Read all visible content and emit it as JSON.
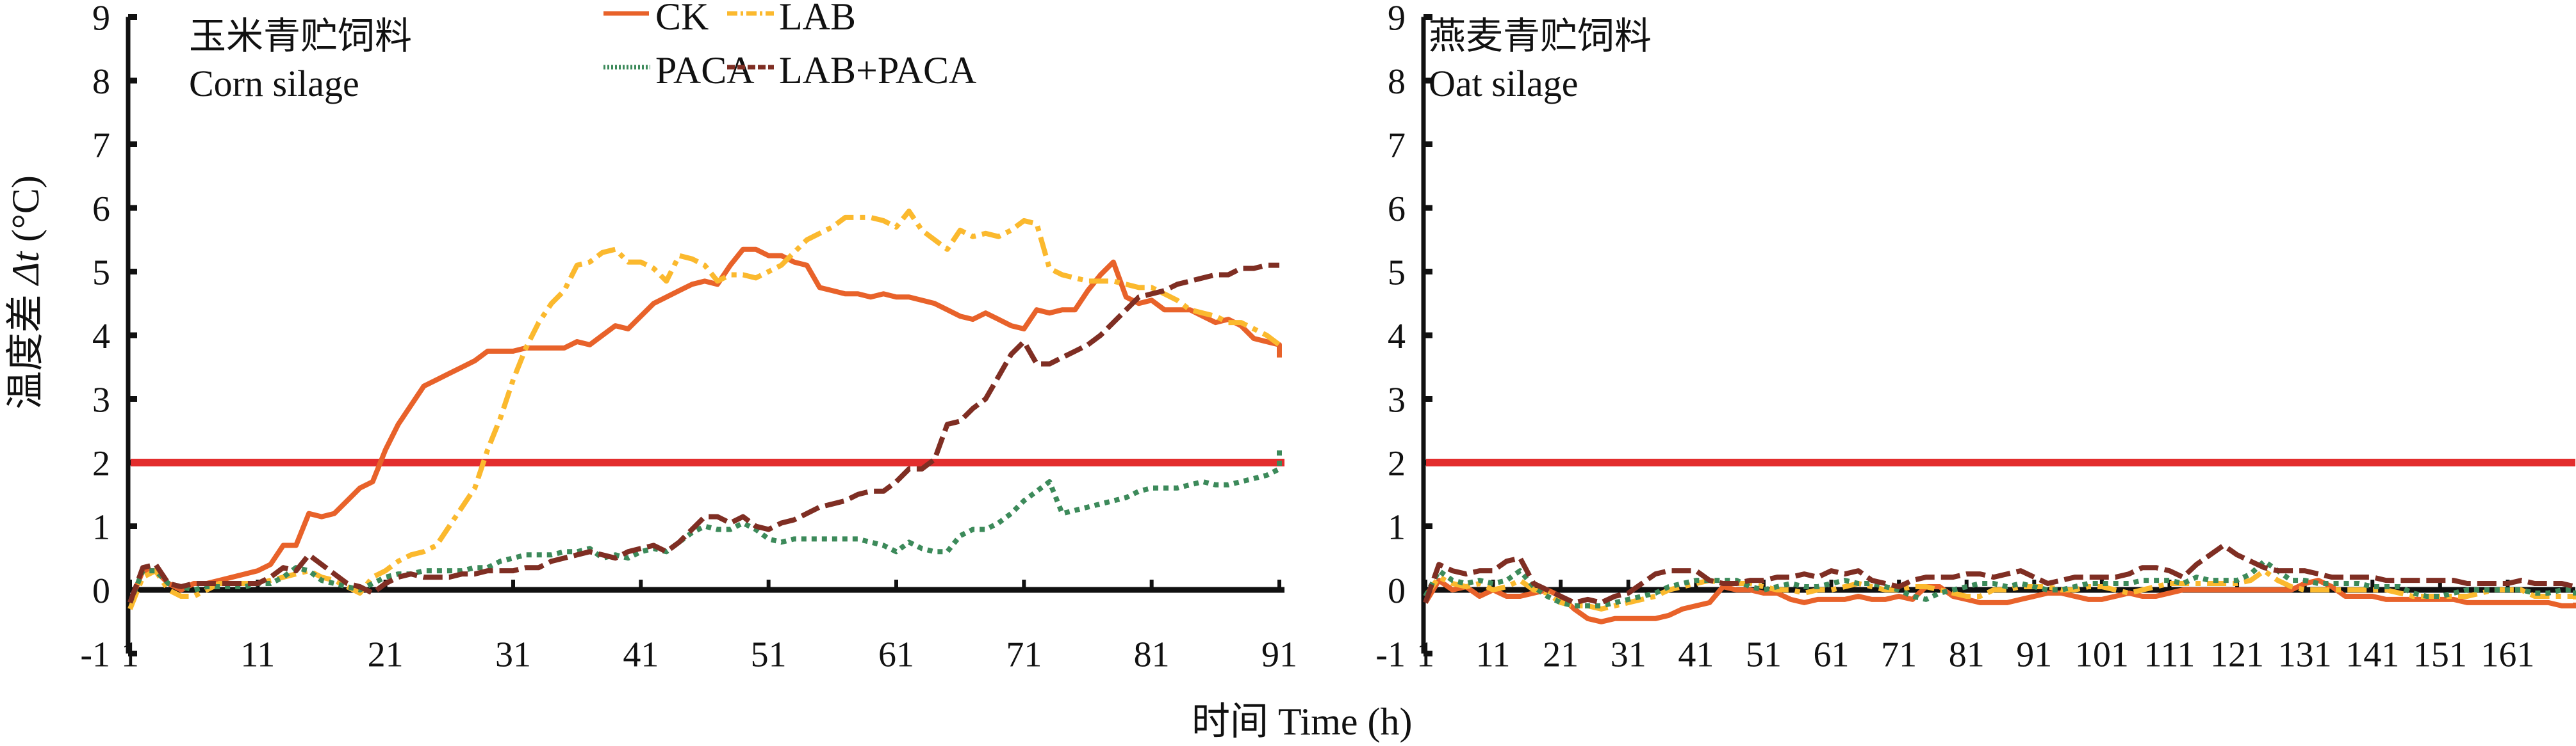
{
  "chart_data": [
    {
      "type": "line",
      "panel": "left",
      "title_cn": "玉米青贮饲料",
      "title_en": "Corn silage",
      "xlabel": "时间 Time (h)",
      "ylabel": "温度差 Δt (°C)",
      "xlim": [
        1,
        91
      ],
      "ylim": [
        -1,
        9
      ],
      "xticks": [
        1,
        11,
        21,
        31,
        41,
        51,
        61,
        71,
        81,
        91
      ],
      "yticks": [
        -1,
        0,
        1,
        2,
        3,
        4,
        5,
        6,
        7,
        8,
        9
      ],
      "threshold": 2,
      "threshold_color": "#e32d2d",
      "x_start": 1,
      "series": [
        {
          "name": "CK",
          "color": "#e8622a",
          "style": "solid",
          "values": [
            -0.2,
            0.3,
            0.3,
            0.1,
            0.0,
            0.1,
            0.1,
            0.15,
            0.2,
            0.25,
            0.3,
            0.4,
            0.7,
            0.7,
            1.2,
            1.15,
            1.2,
            1.4,
            1.6,
            1.7,
            2.2,
            2.6,
            2.9,
            3.2,
            3.3,
            3.4,
            3.5,
            3.6,
            3.75,
            3.75,
            3.75,
            3.8,
            3.8,
            3.8,
            3.8,
            3.9,
            3.85,
            4.0,
            4.15,
            4.1,
            4.3,
            4.5,
            4.6,
            4.7,
            4.8,
            4.85,
            4.8,
            5.1,
            5.35,
            5.35,
            5.25,
            5.25,
            5.15,
            5.1,
            4.75,
            4.7,
            4.65,
            4.65,
            4.6,
            4.65,
            4.6,
            4.6,
            4.55,
            4.5,
            4.4,
            4.3,
            4.25,
            4.35,
            4.25,
            4.15,
            4.1,
            4.4,
            4.35,
            4.4,
            4.4,
            4.7,
            4.95,
            5.15,
            4.6,
            4.5,
            4.55,
            4.4,
            4.4,
            4.4,
            4.3,
            4.2,
            4.25,
            4.15,
            3.95,
            3.9,
            3.85,
            3.8,
            3.75,
            3.75,
            3.7,
            3.65
          ]
        },
        {
          "name": "LAB",
          "color": "#fbb92e",
          "style": "dashdot",
          "values": [
            -0.3,
            0.2,
            0.3,
            0.0,
            -0.1,
            -0.1,
            0.0,
            0.1,
            0.1,
            0.1,
            0.1,
            0.15,
            0.2,
            0.25,
            0.3,
            0.2,
            0.15,
            0.05,
            -0.05,
            0.2,
            0.3,
            0.45,
            0.55,
            0.6,
            0.7,
            1.0,
            1.3,
            1.6,
            2.2,
            2.7,
            3.3,
            3.8,
            4.2,
            4.5,
            4.7,
            5.1,
            5.15,
            5.3,
            5.35,
            5.15,
            5.15,
            5.05,
            4.85,
            5.25,
            5.2,
            5.1,
            4.85,
            4.95,
            4.95,
            4.9,
            5.0,
            5.1,
            5.3,
            5.5,
            5.6,
            5.7,
            5.85,
            5.85,
            5.85,
            5.8,
            5.7,
            5.95,
            5.65,
            5.5,
            5.35,
            5.65,
            5.55,
            5.6,
            5.55,
            5.65,
            5.8,
            5.75,
            5.05,
            4.95,
            4.9,
            4.85,
            4.85,
            4.85,
            4.8,
            4.75,
            4.75,
            4.65,
            4.55,
            4.4,
            4.35,
            4.3,
            4.2,
            4.2,
            4.1,
            4.0,
            3.85
          ]
        },
        {
          "name": "PACA",
          "color": "#3c8a5a",
          "style": "dotted",
          "values": [
            -0.2,
            0.3,
            0.3,
            0.1,
            0.05,
            0.0,
            0.05,
            0.05,
            0.05,
            0.05,
            0.1,
            0.1,
            0.2,
            0.35,
            0.3,
            0.15,
            0.1,
            0.05,
            0.0,
            0.1,
            0.2,
            0.25,
            0.25,
            0.3,
            0.3,
            0.3,
            0.3,
            0.35,
            0.35,
            0.45,
            0.5,
            0.55,
            0.55,
            0.55,
            0.6,
            0.6,
            0.65,
            0.5,
            0.55,
            0.5,
            0.6,
            0.65,
            0.6,
            0.75,
            0.9,
            1.0,
            0.95,
            0.95,
            1.05,
            0.95,
            0.8,
            0.75,
            0.8,
            0.8,
            0.8,
            0.8,
            0.8,
            0.8,
            0.75,
            0.7,
            0.6,
            0.75,
            0.65,
            0.6,
            0.6,
            0.85,
            0.95,
            0.95,
            1.05,
            1.2,
            1.4,
            1.55,
            1.7,
            1.2,
            1.25,
            1.3,
            1.35,
            1.4,
            1.45,
            1.55,
            1.6,
            1.6,
            1.6,
            1.65,
            1.7,
            1.65,
            1.65,
            1.7,
            1.75,
            1.8,
            1.9,
            1.95,
            2.0,
            2.2
          ]
        },
        {
          "name": "LAB+PACA",
          "color": "#7f2e23",
          "style": "dashed",
          "values": [
            -0.2,
            0.35,
            0.4,
            0.1,
            0.05,
            0.1,
            0.1,
            0.1,
            0.1,
            0.1,
            0.1,
            0.2,
            0.35,
            0.3,
            0.55,
            0.4,
            0.25,
            0.1,
            0.05,
            -0.05,
            0.1,
            0.2,
            0.25,
            0.2,
            0.2,
            0.2,
            0.25,
            0.25,
            0.3,
            0.3,
            0.3,
            0.35,
            0.35,
            0.45,
            0.5,
            0.55,
            0.6,
            0.55,
            0.5,
            0.6,
            0.65,
            0.7,
            0.6,
            0.75,
            0.95,
            1.15,
            1.15,
            1.05,
            1.15,
            1.0,
            0.95,
            1.05,
            1.1,
            1.2,
            1.3,
            1.35,
            1.4,
            1.5,
            1.55,
            1.55,
            1.7,
            1.9,
            1.9,
            2.05,
            2.6,
            2.65,
            2.85,
            3.0,
            3.35,
            3.7,
            3.9,
            3.55,
            3.55,
            3.65,
            3.75,
            3.85,
            4.0,
            4.2,
            4.4,
            4.6,
            4.65,
            4.7,
            4.8,
            4.85,
            4.9,
            4.95,
            4.95,
            5.05,
            5.05,
            5.1,
            5.1,
            5.1
          ]
        }
      ]
    },
    {
      "type": "line",
      "panel": "right",
      "title_cn": "燕麦青贮饲料",
      "title_en": "Oat silage",
      "xlabel": "时间 Time (h)",
      "ylabel": "温度差 Δt (°C)",
      "xlim": [
        1,
        171
      ],
      "ylim": [
        -1,
        9
      ],
      "xticks": [
        1,
        11,
        21,
        31,
        41,
        51,
        61,
        71,
        81,
        91,
        101,
        111,
        121,
        131,
        141,
        151,
        161
      ],
      "yticks": [
        -1,
        0,
        1,
        2,
        3,
        4,
        5,
        6,
        7,
        8,
        9
      ],
      "threshold": 2,
      "threshold_color": "#e32d2d",
      "x_start": 1,
      "x_step": 2,
      "series": [
        {
          "name": "CK",
          "color": "#e8622a",
          "style": "solid",
          "values": [
            -0.2,
            0.15,
            0.0,
            0.05,
            -0.1,
            0.0,
            -0.1,
            -0.1,
            -0.05,
            0.0,
            -0.1,
            -0.3,
            -0.45,
            -0.5,
            -0.45,
            -0.45,
            -0.45,
            -0.45,
            -0.4,
            -0.3,
            -0.25,
            -0.2,
            0.05,
            0.0,
            0.0,
            -0.05,
            -0.05,
            -0.15,
            -0.2,
            -0.15,
            -0.15,
            -0.15,
            -0.1,
            -0.15,
            -0.15,
            -0.1,
            -0.15,
            0.05,
            0.05,
            -0.1,
            -0.15,
            -0.2,
            -0.2,
            -0.2,
            -0.15,
            -0.1,
            -0.05,
            -0.05,
            -0.1,
            -0.15,
            -0.15,
            -0.1,
            -0.05,
            -0.1,
            -0.1,
            -0.05,
            0.0,
            0.0,
            0.0,
            0.0,
            0.0,
            0.0,
            0.0,
            0.0,
            0.0,
            0.1,
            0.15,
            0.05,
            -0.1,
            -0.1,
            -0.1,
            -0.15,
            -0.15,
            -0.15,
            -0.15,
            -0.15,
            -0.15,
            -0.2,
            -0.2,
            -0.2,
            -0.2,
            -0.2,
            -0.2,
            -0.2,
            -0.25,
            -0.25,
            -0.2
          ]
        },
        {
          "name": "LAB",
          "color": "#fbb92e",
          "style": "dashdot",
          "values": [
            -0.1,
            0.2,
            0.1,
            0.05,
            0.1,
            0.0,
            0.05,
            0.15,
            0.0,
            -0.05,
            -0.2,
            -0.25,
            -0.25,
            -0.3,
            -0.25,
            -0.2,
            -0.15,
            -0.1,
            0.0,
            0.05,
            0.1,
            0.15,
            0.1,
            0.1,
            0.1,
            0.05,
            0.0,
            0.0,
            -0.05,
            0.0,
            0.0,
            0.05,
            0.1,
            0.05,
            0.0,
            0.0,
            0.05,
            0.05,
            0.0,
            -0.05,
            -0.1,
            -0.1,
            0.0,
            0.0,
            0.05,
            0.05,
            0.05,
            0.0,
            0.0,
            0.05,
            0.05,
            0.0,
            -0.05,
            0.0,
            0.05,
            0.1,
            0.1,
            0.1,
            0.1,
            0.1,
            0.1,
            0.15,
            0.3,
            0.15,
            0.05,
            0.0,
            0.0,
            0.0,
            0.0,
            0.0,
            0.0,
            0.0,
            -0.05,
            -0.1,
            -0.1,
            -0.1,
            -0.1,
            -0.1,
            -0.05,
            0.0,
            0.0,
            0.0,
            -0.1,
            -0.1,
            -0.1,
            -0.1,
            -0.15
          ]
        },
        {
          "name": "PACA",
          "color": "#3c8a5a",
          "style": "dotted",
          "values": [
            -0.1,
            0.3,
            0.15,
            0.1,
            0.15,
            0.1,
            0.15,
            0.3,
            0.05,
            -0.1,
            -0.2,
            -0.25,
            -0.25,
            -0.25,
            -0.2,
            -0.15,
            -0.1,
            -0.05,
            0.05,
            0.1,
            0.15,
            0.15,
            0.15,
            0.15,
            0.05,
            0.0,
            0.05,
            0.1,
            0.05,
            0.05,
            0.1,
            0.15,
            0.1,
            0.1,
            0.05,
            0.0,
            -0.1,
            -0.15,
            -0.05,
            0.0,
            0.05,
            0.1,
            0.1,
            0.05,
            0.1,
            0.05,
            0.0,
            0.0,
            0.05,
            0.1,
            0.1,
            0.1,
            0.1,
            0.15,
            0.15,
            0.15,
            0.1,
            0.2,
            0.15,
            0.15,
            0.15,
            0.25,
            0.45,
            0.3,
            0.15,
            0.15,
            0.1,
            0.1,
            0.1,
            0.1,
            0.05,
            0.05,
            0.05,
            -0.05,
            -0.1,
            -0.1,
            -0.05,
            0.0,
            0.0,
            0.0,
            0.0,
            0.0,
            -0.05,
            -0.05,
            0.0,
            0.0,
            -0.1
          ]
        },
        {
          "name": "LAB+PACA",
          "color": "#7f2e23",
          "style": "dashed",
          "values": [
            -0.2,
            0.4,
            0.3,
            0.25,
            0.3,
            0.3,
            0.45,
            0.5,
            0.1,
            0.0,
            -0.1,
            -0.2,
            -0.15,
            -0.2,
            -0.1,
            -0.05,
            0.1,
            0.25,
            0.3,
            0.3,
            0.3,
            0.15,
            0.1,
            0.1,
            0.15,
            0.15,
            0.2,
            0.2,
            0.25,
            0.2,
            0.3,
            0.25,
            0.3,
            0.15,
            0.1,
            0.05,
            0.15,
            0.2,
            0.2,
            0.2,
            0.25,
            0.25,
            0.2,
            0.25,
            0.3,
            0.2,
            0.1,
            0.15,
            0.2,
            0.2,
            0.2,
            0.2,
            0.25,
            0.35,
            0.35,
            0.3,
            0.2,
            0.4,
            0.55,
            0.7,
            0.55,
            0.45,
            0.35,
            0.3,
            0.3,
            0.3,
            0.25,
            0.2,
            0.2,
            0.2,
            0.2,
            0.15,
            0.15,
            0.15,
            0.15,
            0.15,
            0.15,
            0.1,
            0.1,
            0.1,
            0.1,
            0.15,
            0.1,
            0.1,
            0.1,
            0.05,
            0.0
          ]
        }
      ]
    }
  ],
  "legend": {
    "placement": "top-center",
    "items": [
      {
        "label": "CK"
      },
      {
        "label": "LAB"
      },
      {
        "label": "PACA"
      },
      {
        "label": "LAB+PACA"
      }
    ]
  },
  "labels": {
    "ylabel_cn": "温度差 ",
    "ylabel_delta": "Δt",
    "ylabel_unit": " (°C)",
    "xlabel": "时间 Time (h)"
  }
}
